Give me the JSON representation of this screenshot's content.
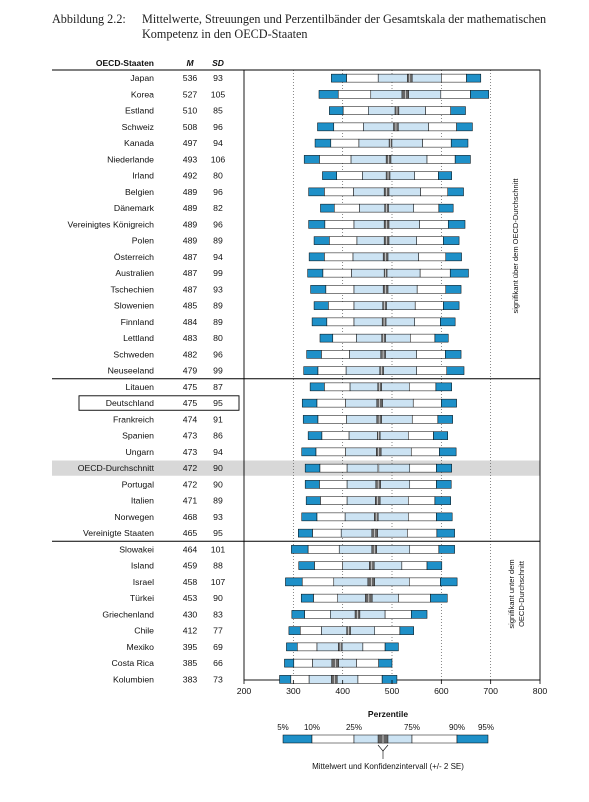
{
  "caption": {
    "label": "Abbildung 2.2:",
    "text": "Mittelwerte, Streuungen und Perzentilbänder der Gesamtskala der mathematischen Kompetenz in den OECD-Staaten"
  },
  "headers": {
    "country": "OECD-Staaten",
    "mean": "M",
    "sd": "SD"
  },
  "colors": {
    "tail": "#1e90c8",
    "inner": "#cce3f3",
    "band": "#ffffff",
    "highlight": "#d8d8d8",
    "ci": "#666666"
  },
  "side_labels": {
    "above": "signifikant über dem OECD-Durchschnitt",
    "below_line1": "signifikant unter dem",
    "below_line2": "OECD-Durchschnitt"
  },
  "legend": {
    "title": "Perzentile",
    "p5": "5%",
    "p10": "10%",
    "p25": "25%",
    "p75": "75%",
    "p90": "90%",
    "p95": "95%",
    "caption": "Mittelwert und Konfidenzintervall (+/- 2 SE)"
  },
  "chart_data": {
    "type": "percentile-band",
    "x_ticks": [
      200,
      300,
      400,
      500,
      600,
      700,
      800
    ],
    "xlim": [
      200,
      800
    ],
    "reference_lines": [
      300,
      400,
      500,
      600,
      700
    ],
    "rows": [
      {
        "country": "Japan",
        "M": 536,
        "SD": 93,
        "p5": 377,
        "p10": 408,
        "p25": 472,
        "ci": [
          531,
          541
        ],
        "p75": 600,
        "p90": 651,
        "p95": 680
      },
      {
        "country": "Korea",
        "M": 527,
        "SD": 105,
        "p5": 352,
        "p10": 391,
        "p25": 457,
        "ci": [
          520,
          534
        ],
        "p75": 599,
        "p90": 659,
        "p95": 696
      },
      {
        "country": "Estland",
        "M": 510,
        "SD": 85,
        "p5": 373,
        "p10": 401,
        "p25": 452,
        "ci": [
          506,
          514
        ],
        "p75": 568,
        "p90": 619,
        "p95": 649
      },
      {
        "country": "Schweiz",
        "M": 508,
        "SD": 96,
        "p5": 349,
        "p10": 382,
        "p25": 442,
        "ci": [
          503,
          513
        ],
        "p75": 574,
        "p90": 631,
        "p95": 663
      },
      {
        "country": "Kanada",
        "M": 497,
        "SD": 94,
        "p5": 344,
        "p10": 376,
        "p25": 433,
        "ci": [
          494,
          500
        ],
        "p75": 562,
        "p90": 620,
        "p95": 654
      },
      {
        "country": "Niederlande",
        "M": 493,
        "SD": 106,
        "p5": 322,
        "p10": 353,
        "p25": 417,
        "ci": [
          488,
          498
        ],
        "p75": 571,
        "p90": 628,
        "p95": 659
      },
      {
        "country": "Irland",
        "M": 492,
        "SD": 80,
        "p5": 359,
        "p10": 388,
        "p25": 440,
        "ci": [
          488,
          496
        ],
        "p75": 546,
        "p90": 594,
        "p95": 621
      },
      {
        "country": "Belgien",
        "M": 489,
        "SD": 96,
        "p5": 331,
        "p10": 363,
        "p25": 422,
        "ci": [
          484,
          494
        ],
        "p75": 558,
        "p90": 613,
        "p95": 645
      },
      {
        "country": "Dänemark",
        "M": 489,
        "SD": 82,
        "p5": 355,
        "p10": 383,
        "p25": 434,
        "ci": [
          485,
          493
        ],
        "p75": 544,
        "p90": 595,
        "p95": 624
      },
      {
        "country": "Vereinigtes Königreich",
        "M": 489,
        "SD": 96,
        "p5": 331,
        "p10": 364,
        "p25": 423,
        "ci": [
          484,
          494
        ],
        "p75": 556,
        "p90": 614,
        "p95": 648
      },
      {
        "country": "Polen",
        "M": 489,
        "SD": 89,
        "p5": 342,
        "p10": 373,
        "p25": 429,
        "ci": [
          484,
          494
        ],
        "p75": 550,
        "p90": 604,
        "p95": 636
      },
      {
        "country": "Österreich",
        "M": 487,
        "SD": 94,
        "p5": 332,
        "p10": 363,
        "p25": 421,
        "ci": [
          482,
          492
        ],
        "p75": 554,
        "p90": 609,
        "p95": 641
      },
      {
        "country": "Australien",
        "M": 487,
        "SD": 99,
        "p5": 329,
        "p10": 360,
        "p25": 418,
        "ci": [
          484,
          490
        ],
        "p75": 557,
        "p90": 618,
        "p95": 655
      },
      {
        "country": "Tschechien",
        "M": 487,
        "SD": 93,
        "p5": 335,
        "p10": 366,
        "p25": 423,
        "ci": [
          482,
          492
        ],
        "p75": 551,
        "p90": 609,
        "p95": 640
      },
      {
        "country": "Slowenien",
        "M": 485,
        "SD": 89,
        "p5": 342,
        "p10": 371,
        "p25": 423,
        "ci": [
          481,
          489
        ],
        "p75": 547,
        "p90": 604,
        "p95": 636
      },
      {
        "country": "Finnland",
        "M": 484,
        "SD": 89,
        "p5": 338,
        "p10": 368,
        "p25": 423,
        "ci": [
          480,
          488
        ],
        "p75": 546,
        "p90": 598,
        "p95": 628
      },
      {
        "country": "Lettland",
        "M": 483,
        "SD": 80,
        "p5": 354,
        "p10": 380,
        "p25": 428,
        "ci": [
          479,
          487
        ],
        "p75": 537,
        "p90": 587,
        "p95": 614
      },
      {
        "country": "Schweden",
        "M": 482,
        "SD": 96,
        "p5": 327,
        "p10": 357,
        "p25": 414,
        "ci": [
          477,
          487
        ],
        "p75": 550,
        "p90": 608,
        "p95": 640
      },
      {
        "country": "Neuseeland",
        "M": 479,
        "SD": 99,
        "p5": 321,
        "p10": 350,
        "p25": 407,
        "ci": [
          475,
          483
        ],
        "p75": 550,
        "p90": 611,
        "p95": 646
      },
      {
        "country": "Litauen",
        "M": 475,
        "SD": 87,
        "p5": 334,
        "p10": 363,
        "p25": 415,
        "ci": [
          471,
          479
        ],
        "p75": 535,
        "p90": 589,
        "p95": 621
      },
      {
        "country": "Deutschland",
        "M": 475,
        "SD": 95,
        "p5": 318,
        "p10": 348,
        "p25": 406,
        "ci": [
          469,
          481
        ],
        "p75": 543,
        "p90": 600,
        "p95": 631,
        "boxed": true
      },
      {
        "country": "Frankreich",
        "M": 474,
        "SD": 91,
        "p5": 320,
        "p10": 350,
        "p25": 408,
        "ci": [
          469,
          479
        ],
        "p75": 541,
        "p90": 593,
        "p95": 623
      },
      {
        "country": "Spanien",
        "M": 473,
        "SD": 86,
        "p5": 330,
        "p10": 358,
        "p25": 413,
        "ci": [
          470,
          476
        ],
        "p75": 533,
        "p90": 584,
        "p95": 613
      },
      {
        "country": "Ungarn",
        "M": 473,
        "SD": 94,
        "p5": 317,
        "p10": 346,
        "p25": 406,
        "ci": [
          468,
          478
        ],
        "p75": 539,
        "p90": 596,
        "p95": 630
      },
      {
        "country": "OECD-Durchschnitt",
        "M": 472,
        "SD": 90,
        "p5": 324,
        "p10": 354,
        "p25": 409,
        "ci": [
          471,
          473
        ],
        "p75": 536,
        "p90": 590,
        "p95": 621,
        "highlight": true
      },
      {
        "country": "Portugal",
        "M": 472,
        "SD": 90,
        "p5": 324,
        "p10": 353,
        "p25": 409,
        "ci": [
          467,
          477
        ],
        "p75": 536,
        "p90": 590,
        "p95": 620
      },
      {
        "country": "Italien",
        "M": 471,
        "SD": 89,
        "p5": 326,
        "p10": 355,
        "p25": 409,
        "ci": [
          466,
          476
        ],
        "p75": 533,
        "p90": 587,
        "p95": 619
      },
      {
        "country": "Norwegen",
        "M": 468,
        "SD": 93,
        "p5": 317,
        "p10": 348,
        "p25": 405,
        "ci": [
          464,
          472
        ],
        "p75": 533,
        "p90": 590,
        "p95": 622
      },
      {
        "country": "Vereinigte Staaten",
        "M": 465,
        "SD": 95,
        "p5": 310,
        "p10": 339,
        "p25": 397,
        "ci": [
          459,
          471
        ],
        "p75": 531,
        "p90": 591,
        "p95": 627
      },
      {
        "country": "Slowakei",
        "M": 464,
        "SD": 101,
        "p5": 296,
        "p10": 330,
        "p25": 393,
        "ci": [
          459,
          469
        ],
        "p75": 536,
        "p90": 595,
        "p95": 627
      },
      {
        "country": "Island",
        "M": 459,
        "SD": 88,
        "p5": 311,
        "p10": 343,
        "p25": 400,
        "ci": [
          454,
          464
        ],
        "p75": 520,
        "p90": 571,
        "p95": 601
      },
      {
        "country": "Israel",
        "M": 458,
        "SD": 107,
        "p5": 284,
        "p10": 318,
        "p25": 382,
        "ci": [
          451,
          465
        ],
        "p75": 535,
        "p90": 598,
        "p95": 632
      },
      {
        "country": "Türkei",
        "M": 453,
        "SD": 90,
        "p5": 316,
        "p10": 341,
        "p25": 390,
        "ci": [
          446,
          460
        ],
        "p75": 513,
        "p90": 578,
        "p95": 612
      },
      {
        "country": "Griechenland",
        "M": 430,
        "SD": 83,
        "p5": 297,
        "p10": 323,
        "p25": 375,
        "ci": [
          425,
          435
        ],
        "p75": 486,
        "p90": 539,
        "p95": 571
      },
      {
        "country": "Chile",
        "M": 412,
        "SD": 77,
        "p5": 291,
        "p10": 314,
        "p25": 357,
        "ci": [
          408,
          416
        ],
        "p75": 465,
        "p90": 516,
        "p95": 544
      },
      {
        "country": "Mexiko",
        "M": 395,
        "SD": 69,
        "p5": 286,
        "p10": 308,
        "p25": 348,
        "ci": [
          391,
          399
        ],
        "p75": 441,
        "p90": 486,
        "p95": 513
      },
      {
        "country": "Costa Rica",
        "M": 385,
        "SD": 66,
        "p5": 282,
        "p10": 301,
        "p25": 339,
        "ci": [
          378,
          392
        ],
        "p75": 428,
        "p90": 473,
        "p95": 500
      },
      {
        "country": "Kolumbien",
        "M": 383,
        "SD": 73,
        "p5": 272,
        "p10": 295,
        "p25": 332,
        "ci": [
          377,
          389
        ],
        "p75": 431,
        "p90": 480,
        "p95": 510
      }
    ]
  }
}
